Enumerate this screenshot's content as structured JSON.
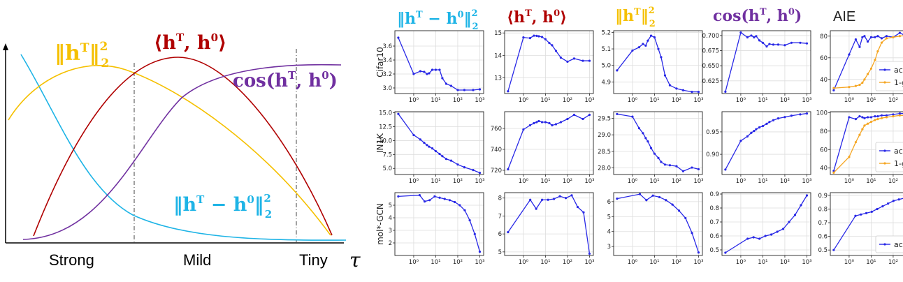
{
  "colors": {
    "yellow": "#F5C000",
    "red": "#B00000",
    "purple": "#7030A0",
    "cyan": "#1EB4E6",
    "blue": "#2828E6",
    "orange": "#F5A623",
    "grid": "#DDDDDD"
  },
  "schematic": {
    "regions": [
      "Strong",
      "Mild",
      "Tiny"
    ],
    "x_symbol": "τ",
    "labels": {
      "yellow": {
        "main": "‖h",
        "sup": "T",
        "close": "‖",
        "power": "2",
        "sub": "2"
      },
      "red": {
        "text": "⟨h",
        "sup1": "T",
        "mid": ", h",
        "sup2": "0",
        "close": "⟩"
      },
      "purple": {
        "text": "cos(h",
        "sup1": "T",
        "mid": ", h",
        "sup2": "0",
        "close": ")"
      },
      "cyan": {
        "main": "‖h",
        "sup1": "T",
        "minus": " − h",
        "sup2": "0",
        "close": "‖",
        "power": "2",
        "sub": "2"
      }
    }
  },
  "columns": [
    {
      "kind": "math",
      "color": "cyan",
      "text": "‖hT − h0‖²₂"
    },
    {
      "kind": "math",
      "color": "red",
      "text": "⟨hT, h0⟩"
    },
    {
      "kind": "math",
      "color": "yellow",
      "text": "‖hT‖²₂"
    },
    {
      "kind": "math",
      "color": "purple",
      "text": "cos(hT, h0)"
    },
    {
      "kind": "plain",
      "text": "AIE"
    }
  ],
  "rows": [
    "Cifar10",
    "IN1K",
    "mol*-GCN"
  ],
  "x_tick_labels": [
    "10⁰",
    "10¹",
    "10²",
    "10³"
  ],
  "legend": {
    "acc": "acc",
    "gap": "1-gap"
  },
  "chart_data": {
    "type": "line",
    "x_scale": "log",
    "x": [
      0.2,
      1,
      2,
      3,
      4,
      5,
      7,
      10,
      15,
      20,
      30,
      50,
      100,
      200,
      500,
      1000
    ],
    "panels": [
      [
        {
          "ylim": [
            2.92,
            3.82
          ],
          "yticks": [
            3.0,
            3.2,
            3.4,
            3.6
          ],
          "ytick_labels": [
            "3.0",
            "3.2",
            "3.4",
            "3.6"
          ],
          "series": [
            {
              "name": "",
              "color": "blue",
              "values": [
                3.72,
                3.2,
                3.24,
                3.23,
                3.2,
                3.21,
                3.26,
                3.26,
                3.26,
                3.14,
                3.06,
                3.03,
                2.97,
                2.97,
                2.97,
                2.98
              ]
            }
          ]
        },
        {
          "ylim": [
            12.3,
            15.1
          ],
          "yticks": [
            13,
            14,
            15
          ],
          "ytick_labels": [
            "13",
            "14",
            "15"
          ],
          "series": [
            {
              "name": "",
              "color": "blue",
              "values": [
                12.4,
                14.8,
                14.77,
                14.88,
                14.87,
                14.85,
                14.82,
                14.72,
                14.55,
                14.45,
                14.2,
                13.9,
                13.72,
                13.86,
                13.76,
                13.76
              ]
            }
          ]
        },
        {
          "ylim": [
            4.83,
            5.21
          ],
          "yticks": [
            4.9,
            5.0,
            5.1,
            5.2
          ],
          "ytick_labels": [
            "4.9",
            "5.0",
            "5.1",
            "5.2"
          ],
          "series": [
            {
              "name": "",
              "color": "blue",
              "values": [
                4.97,
                5.09,
                5.11,
                5.13,
                5.12,
                5.15,
                5.18,
                5.17,
                5.1,
                5.05,
                4.94,
                4.88,
                4.86,
                4.85,
                4.84,
                4.84
              ]
            }
          ]
        },
        {
          "ylim": [
            0.604,
            0.708
          ],
          "yticks": [
            0.625,
            0.65,
            0.675,
            0.7
          ],
          "ytick_labels": [
            "0.625",
            "0.650",
            "0.675",
            "0.700"
          ],
          "series": [
            {
              "name": "",
              "color": "blue",
              "values": [
                0.607,
                0.705,
                0.697,
                0.7,
                0.697,
                0.699,
                0.692,
                0.688,
                0.682,
                0.686,
                0.685,
                0.685,
                0.684,
                0.688,
                0.688,
                0.687
              ]
            }
          ]
        },
        {
          "ylim": [
            27,
            85
          ],
          "yticks": [
            40,
            60,
            80
          ],
          "ytick_labels": [
            "40",
            "60",
            "80"
          ],
          "series": [
            {
              "name": "acc",
              "color": "blue",
              "values": [
                30,
                63,
                77,
                70,
                79,
                80,
                75,
                79,
                79,
                80,
                78,
                80,
                79,
                83,
                79,
                81
              ]
            },
            {
              "name": "1-gap",
              "color": "orange",
              "values": [
                32,
                33,
                34,
                35,
                37,
                40,
                45,
                50,
                58,
                66,
                74,
                78,
                79,
                80,
                81,
                82
              ]
            }
          ]
        }
      ],
      [
        {
          "ylim": [
            3.9,
            15.2
          ],
          "yticks": [
            5.0,
            7.5,
            10.0,
            12.5,
            15.0
          ],
          "ytick_labels": [
            "5.0",
            "7.5",
            "10.0",
            "12.5",
            "15.0"
          ],
          "series": [
            {
              "name": "",
              "color": "blue",
              "values": [
                14.8,
                11.0,
                10.2,
                9.6,
                9.2,
                8.9,
                8.6,
                8.1,
                7.6,
                7.2,
                6.7,
                6.4,
                5.7,
                5.2,
                4.7,
                4.2
              ]
            }
          ]
        },
        {
          "ylim": [
            716,
            776
          ],
          "yticks": [
            720,
            740,
            760
          ],
          "ytick_labels": [
            "720",
            "740",
            "760"
          ],
          "series": [
            {
              "name": "",
              "color": "blue",
              "values": [
                721,
                759,
                763,
                765,
                766,
                767,
                766,
                766,
                765,
                763,
                764,
                766,
                769,
                773,
                769,
                773
              ]
            }
          ]
        },
        {
          "ylim": [
            27.8,
            29.7
          ],
          "yticks": [
            28.0,
            28.5,
            29.0,
            29.5
          ],
          "ytick_labels": [
            "28.0",
            "28.5",
            "29.0",
            "29.5"
          ],
          "series": [
            {
              "name": "",
              "color": "blue",
              "values": [
                29.63,
                29.55,
                29.2,
                29.05,
                28.9,
                28.8,
                28.6,
                28.43,
                28.3,
                28.18,
                28.1,
                28.08,
                28.05,
                27.9,
                28.01,
                27.96
              ]
            }
          ]
        },
        {
          "ylim": [
            0.855,
            0.995
          ],
          "yticks": [
            0.9,
            0.95
          ],
          "ytick_labels": [
            "0.90",
            "0.95"
          ],
          "series": [
            {
              "name": "",
              "color": "blue",
              "values": [
                0.866,
                0.93,
                0.94,
                0.948,
                0.952,
                0.956,
                0.96,
                0.963,
                0.968,
                0.972,
                0.976,
                0.98,
                0.983,
                0.986,
                0.989,
                0.991
              ]
            }
          ]
        },
        {
          "ylim": [
            33,
            101
          ],
          "yticks": [
            40,
            60,
            80,
            100
          ],
          "ytick_labels": [
            "40",
            "60",
            "80",
            "100"
          ],
          "series": [
            {
              "name": "acc",
              "color": "blue",
              "values": [
                37,
                95,
                93,
                96,
                95,
                94,
                95,
                95,
                96,
                96,
                97,
                97,
                98,
                99,
                99,
                97
              ]
            },
            {
              "name": "1-gap",
              "color": "orange",
              "values": [
                35,
                52,
                68,
                76,
                82,
                86,
                88,
                90,
                92,
                93,
                94,
                95,
                96,
                97,
                97,
                97
              ]
            }
          ]
        }
      ],
      [
        {
          "ylim": [
            1.0,
            6.0
          ],
          "yticks": [
            2,
            3,
            4,
            5
          ],
          "ytick_labels": [
            "2",
            "3",
            "4",
            "5"
          ],
          "series": [
            {
              "name": "",
              "color": "blue",
              "values": [
                5.7,
                5.8,
                5.3,
                5.4,
                5.7,
                5.6,
                5.5,
                5.4,
                5.25,
                5.0,
                4.6,
                3.8,
                2.7,
                1.3
              ]
            }
          ]
        },
        {
          "ylim": [
            4.8,
            8.3
          ],
          "yticks": [
            5,
            6,
            7,
            8
          ],
          "ytick_labels": [
            "5",
            "6",
            "7",
            "8"
          ],
          "series": [
            {
              "name": "",
              "color": "blue",
              "values": [
                6.1,
                7.9,
                7.4,
                7.9,
                7.9,
                7.95,
                8.1,
                8.0,
                8.15,
                7.5,
                7.2,
                4.9
              ]
            }
          ]
        },
        {
          "ylim": [
            2.4,
            6.6
          ],
          "yticks": [
            3,
            4,
            5,
            6
          ],
          "ytick_labels": [
            "3",
            "4",
            "5",
            "6"
          ],
          "series": [
            {
              "name": "",
              "color": "blue",
              "values": [
                6.2,
                6.5,
                6.1,
                6.4,
                6.3,
                6.1,
                5.8,
                5.4,
                4.9,
                3.9,
                2.6
              ]
            }
          ]
        },
        {
          "ylim": [
            0.46,
            0.91
          ],
          "yticks": [
            0.5,
            0.6,
            0.7,
            0.8,
            0.9
          ],
          "ytick_labels": [
            "0.5",
            "0.6",
            "0.7",
            "0.8",
            "0.9"
          ],
          "series": [
            {
              "name": "",
              "color": "blue",
              "values": [
                0.48,
                0.58,
                0.59,
                0.58,
                0.6,
                0.61,
                0.63,
                0.65,
                0.7,
                0.75,
                0.82,
                0.89
              ]
            }
          ]
        },
        {
          "ylim": [
            0.46,
            0.92
          ],
          "yticks": [
            0.5,
            0.6,
            0.7,
            0.8,
            0.9
          ],
          "ytick_labels": [
            "0.5",
            "0.6",
            "0.7",
            "0.8",
            "0.9"
          ],
          "series": [
            {
              "name": "acc",
              "color": "blue",
              "values": [
                0.5,
                0.75,
                0.76,
                0.77,
                0.78,
                0.8,
                0.82,
                0.84,
                0.86,
                0.87,
                0.88,
                0.89,
                0.9
              ]
            }
          ]
        }
      ]
    ]
  }
}
